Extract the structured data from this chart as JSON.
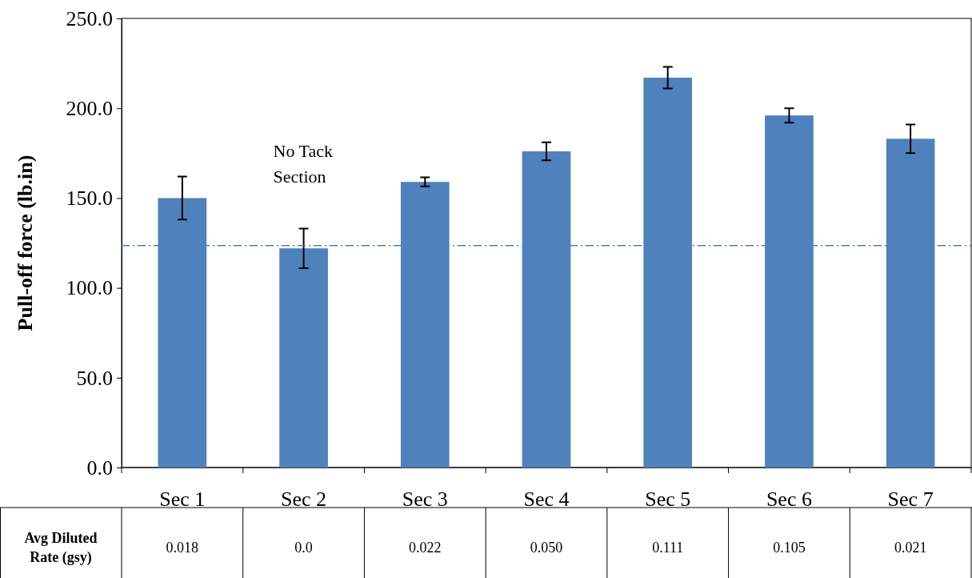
{
  "chart_data": {
    "type": "bar",
    "ylabel": "Pull-off force (lb.in)",
    "categories": [
      "Sec 1",
      "Sec 2",
      "Sec 3",
      "Sec 4",
      "Sec 5",
      "Sec 6",
      "Sec 7"
    ],
    "values": [
      150,
      122,
      159,
      176,
      217,
      196,
      183
    ],
    "errors": [
      12,
      11,
      2.5,
      5,
      6,
      4,
      8
    ],
    "color": "#4f81bd",
    "ylim": [
      0,
      250
    ],
    "yticks": [
      {
        "value": 0,
        "label": "0.0"
      },
      {
        "value": 50,
        "label": "50.0"
      },
      {
        "value": 100,
        "label": "100.0"
      },
      {
        "value": 150,
        "label": "150.0"
      },
      {
        "value": 200,
        "label": "200.0"
      },
      {
        "value": 250,
        "label": "250.0"
      }
    ],
    "grid": false,
    "ref_lines": [
      {
        "axis": "y",
        "value": 123.5,
        "color": "#4f81bd",
        "line_style": "dashed"
      }
    ],
    "annotations": [
      "No Tack\nSection",
      "Avg Diluted\nRate (gsy)",
      "0.018",
      "0.0",
      "0.022",
      "0.050",
      "0.111",
      "0.105",
      "0.021"
    ]
  }
}
